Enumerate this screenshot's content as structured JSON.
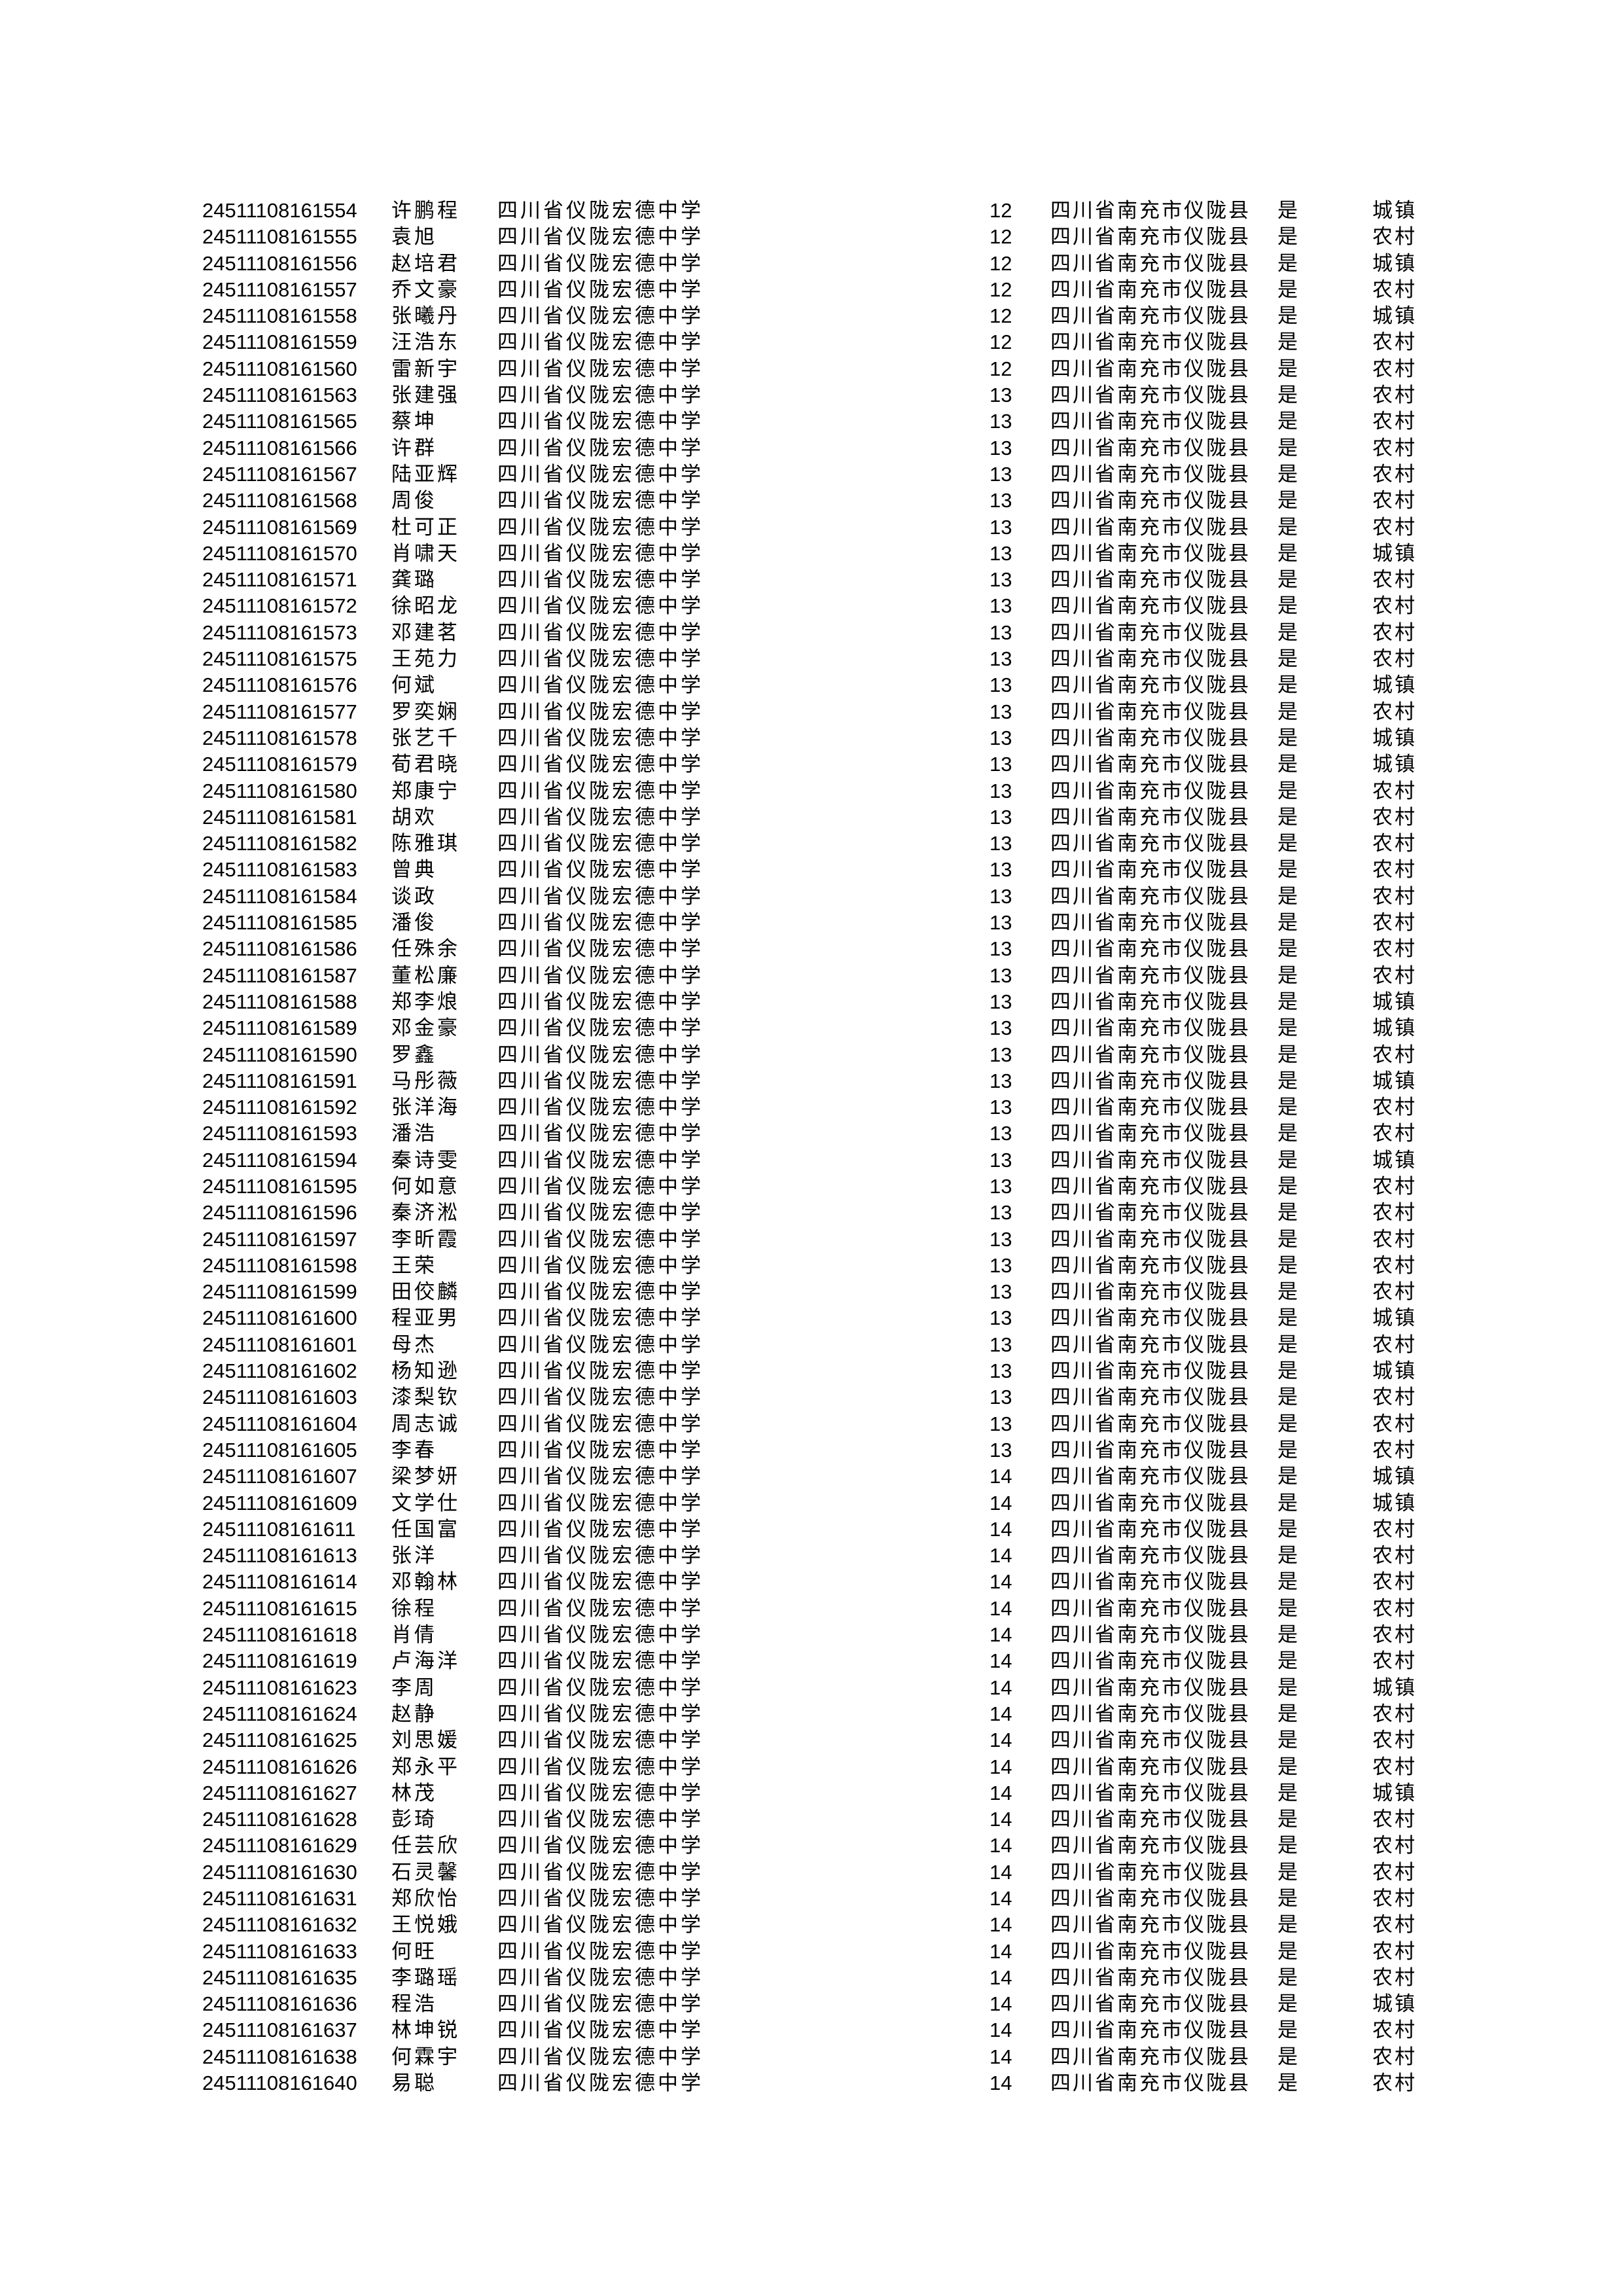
{
  "table": {
    "school": "四川省仪陇宏德中学",
    "region": "四川省南充市仪陇县",
    "flag": "是",
    "rows": [
      [
        "24511108161554",
        "许鹏程",
        "12",
        "城镇"
      ],
      [
        "24511108161555",
        "袁旭",
        "12",
        "农村"
      ],
      [
        "24511108161556",
        "赵培君",
        "12",
        "城镇"
      ],
      [
        "24511108161557",
        "乔文豪",
        "12",
        "农村"
      ],
      [
        "24511108161558",
        "张曦丹",
        "12",
        "城镇"
      ],
      [
        "24511108161559",
        "汪浩东",
        "12",
        "农村"
      ],
      [
        "24511108161560",
        "雷新宇",
        "12",
        "农村"
      ],
      [
        "24511108161563",
        "张建强",
        "13",
        "农村"
      ],
      [
        "24511108161565",
        "蔡坤",
        "13",
        "农村"
      ],
      [
        "24511108161566",
        "许群",
        "13",
        "农村"
      ],
      [
        "24511108161567",
        "陆亚辉",
        "13",
        "农村"
      ],
      [
        "24511108161568",
        "周俊",
        "13",
        "农村"
      ],
      [
        "24511108161569",
        "杜可正",
        "13",
        "农村"
      ],
      [
        "24511108161570",
        "肖啸天",
        "13",
        "城镇"
      ],
      [
        "24511108161571",
        "龚璐",
        "13",
        "农村"
      ],
      [
        "24511108161572",
        "徐昭龙",
        "13",
        "农村"
      ],
      [
        "24511108161573",
        "邓建茗",
        "13",
        "农村"
      ],
      [
        "24511108161575",
        "王苑力",
        "13",
        "农村"
      ],
      [
        "24511108161576",
        "何斌",
        "13",
        "城镇"
      ],
      [
        "24511108161577",
        "罗奕娴",
        "13",
        "农村"
      ],
      [
        "24511108161578",
        "张艺千",
        "13",
        "城镇"
      ],
      [
        "24511108161579",
        "荀君晓",
        "13",
        "城镇"
      ],
      [
        "24511108161580",
        "郑康宁",
        "13",
        "农村"
      ],
      [
        "24511108161581",
        "胡欢",
        "13",
        "农村"
      ],
      [
        "24511108161582",
        "陈雅琪",
        "13",
        "农村"
      ],
      [
        "24511108161583",
        "曾典",
        "13",
        "农村"
      ],
      [
        "24511108161584",
        "谈政",
        "13",
        "农村"
      ],
      [
        "24511108161585",
        "潘俊",
        "13",
        "农村"
      ],
      [
        "24511108161586",
        "任殊余",
        "13",
        "农村"
      ],
      [
        "24511108161587",
        "董松廉",
        "13",
        "农村"
      ],
      [
        "24511108161588",
        "郑李烺",
        "13",
        "城镇"
      ],
      [
        "24511108161589",
        "邓金豪",
        "13",
        "城镇"
      ],
      [
        "24511108161590",
        "罗鑫",
        "13",
        "农村"
      ],
      [
        "24511108161591",
        "马彤薇",
        "13",
        "城镇"
      ],
      [
        "24511108161592",
        "张洋海",
        "13",
        "农村"
      ],
      [
        "24511108161593",
        "潘浩",
        "13",
        "农村"
      ],
      [
        "24511108161594",
        "秦诗雯",
        "13",
        "城镇"
      ],
      [
        "24511108161595",
        "何如意",
        "13",
        "农村"
      ],
      [
        "24511108161596",
        "秦济淞",
        "13",
        "农村"
      ],
      [
        "24511108161597",
        "李昕霞",
        "13",
        "农村"
      ],
      [
        "24511108161598",
        "王荣",
        "13",
        "农村"
      ],
      [
        "24511108161599",
        "田佼麟",
        "13",
        "农村"
      ],
      [
        "24511108161600",
        "程亚男",
        "13",
        "城镇"
      ],
      [
        "24511108161601",
        "母杰",
        "13",
        "农村"
      ],
      [
        "24511108161602",
        "杨知逊",
        "13",
        "城镇"
      ],
      [
        "24511108161603",
        "漆梨钦",
        "13",
        "农村"
      ],
      [
        "24511108161604",
        "周志诚",
        "13",
        "农村"
      ],
      [
        "24511108161605",
        "李春",
        "13",
        "农村"
      ],
      [
        "24511108161607",
        "梁梦妍",
        "14",
        "城镇"
      ],
      [
        "24511108161609",
        "文学仕",
        "14",
        "城镇"
      ],
      [
        "24511108161611",
        "任国富",
        "14",
        "农村"
      ],
      [
        "24511108161613",
        "张洋",
        "14",
        "农村"
      ],
      [
        "24511108161614",
        "邓翰林",
        "14",
        "农村"
      ],
      [
        "24511108161615",
        "徐程",
        "14",
        "农村"
      ],
      [
        "24511108161618",
        "肖倩",
        "14",
        "农村"
      ],
      [
        "24511108161619",
        "卢海洋",
        "14",
        "农村"
      ],
      [
        "24511108161623",
        "李周",
        "14",
        "城镇"
      ],
      [
        "24511108161624",
        "赵静",
        "14",
        "农村"
      ],
      [
        "24511108161625",
        "刘思媛",
        "14",
        "农村"
      ],
      [
        "24511108161626",
        "郑永平",
        "14",
        "农村"
      ],
      [
        "24511108161627",
        "林茂",
        "14",
        "城镇"
      ],
      [
        "24511108161628",
        "彭琦",
        "14",
        "农村"
      ],
      [
        "24511108161629",
        "任芸欣",
        "14",
        "农村"
      ],
      [
        "24511108161630",
        "石灵馨",
        "14",
        "农村"
      ],
      [
        "24511108161631",
        "郑欣怡",
        "14",
        "农村"
      ],
      [
        "24511108161632",
        "王悦娥",
        "14",
        "农村"
      ],
      [
        "24511108161633",
        "何旺",
        "14",
        "农村"
      ],
      [
        "24511108161635",
        "李璐瑶",
        "14",
        "农村"
      ],
      [
        "24511108161636",
        "程浩",
        "14",
        "城镇"
      ],
      [
        "24511108161637",
        "林坤锐",
        "14",
        "农村"
      ],
      [
        "24511108161638",
        "何霖宇",
        "14",
        "农村"
      ],
      [
        "24511108161640",
        "易聪",
        "14",
        "农村"
      ]
    ]
  }
}
